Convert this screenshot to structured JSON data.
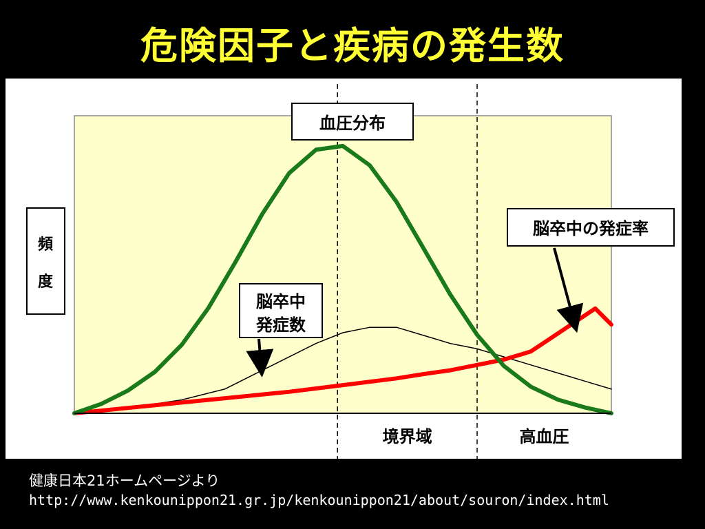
{
  "slide": {
    "title": "危険因子と疾病の発生数"
  },
  "colors": {
    "background": "#000000",
    "title": "#ffff33",
    "plot_area": "#ffffcc",
    "blood_pressure_curve": "#1a7a1a",
    "stroke_cases_curve": "#000000",
    "stroke_rate_curve": "#ff0000"
  },
  "chart_data": {
    "type": "line",
    "title": "",
    "xlabel": "",
    "ylabel": "頻度",
    "xlim": [
      0,
      100
    ],
    "ylim": [
      0,
      100
    ],
    "grid": false,
    "regions": [
      {
        "label": "境界域",
        "from": 49,
        "to": 75
      },
      {
        "label": "高血圧",
        "from": 75,
        "to": 100
      }
    ],
    "series": [
      {
        "name": "血圧分布",
        "x": [
          0,
          5,
          10,
          15,
          20,
          25,
          30,
          35,
          40,
          45,
          50,
          55,
          60,
          65,
          70,
          75,
          80,
          85,
          90,
          95,
          100
        ],
        "values": [
          0,
          3.5,
          8.5,
          15.4,
          25.5,
          39.3,
          56.3,
          74.2,
          89.4,
          98.1,
          99.5,
          92.3,
          78.7,
          61.5,
          44.2,
          29.2,
          17.6,
          9.9,
          5.1,
          2.2,
          0
        ]
      },
      {
        "name": "脳卒中発症数",
        "x": [
          0,
          10,
          20,
          28,
          35,
          40,
          45,
          50,
          55,
          60,
          65,
          70,
          75,
          80,
          85,
          90,
          95,
          100
        ],
        "values": [
          0,
          2,
          5,
          9,
          16,
          21,
          26,
          30,
          32,
          32,
          29,
          26,
          24,
          21,
          18,
          15,
          12,
          9
        ]
      },
      {
        "name": "脳卒中の発症率",
        "x": [
          0,
          10,
          20,
          30,
          40,
          50,
          60,
          65,
          70,
          75,
          80,
          85,
          88,
          91,
          94,
          97,
          100
        ],
        "values": [
          0,
          2,
          4,
          6,
          8,
          10.5,
          13,
          14.6,
          16,
          18,
          20,
          23,
          27,
          31,
          35,
          39,
          33
        ]
      }
    ],
    "annotations": [
      {
        "text": "血圧分布",
        "target": "blood_pressure_peak"
      },
      {
        "text_lines": [
          "脳卒中",
          "発症数"
        ],
        "target": "stroke_cases"
      },
      {
        "text": "脳卒中の発症率",
        "target": "stroke_rate"
      }
    ]
  },
  "source": {
    "line1": "健康日本21ホームページより",
    "line2": "http://www.kenkounippon21.gr.jp/kenkounippon21/about/souron/index.html"
  }
}
